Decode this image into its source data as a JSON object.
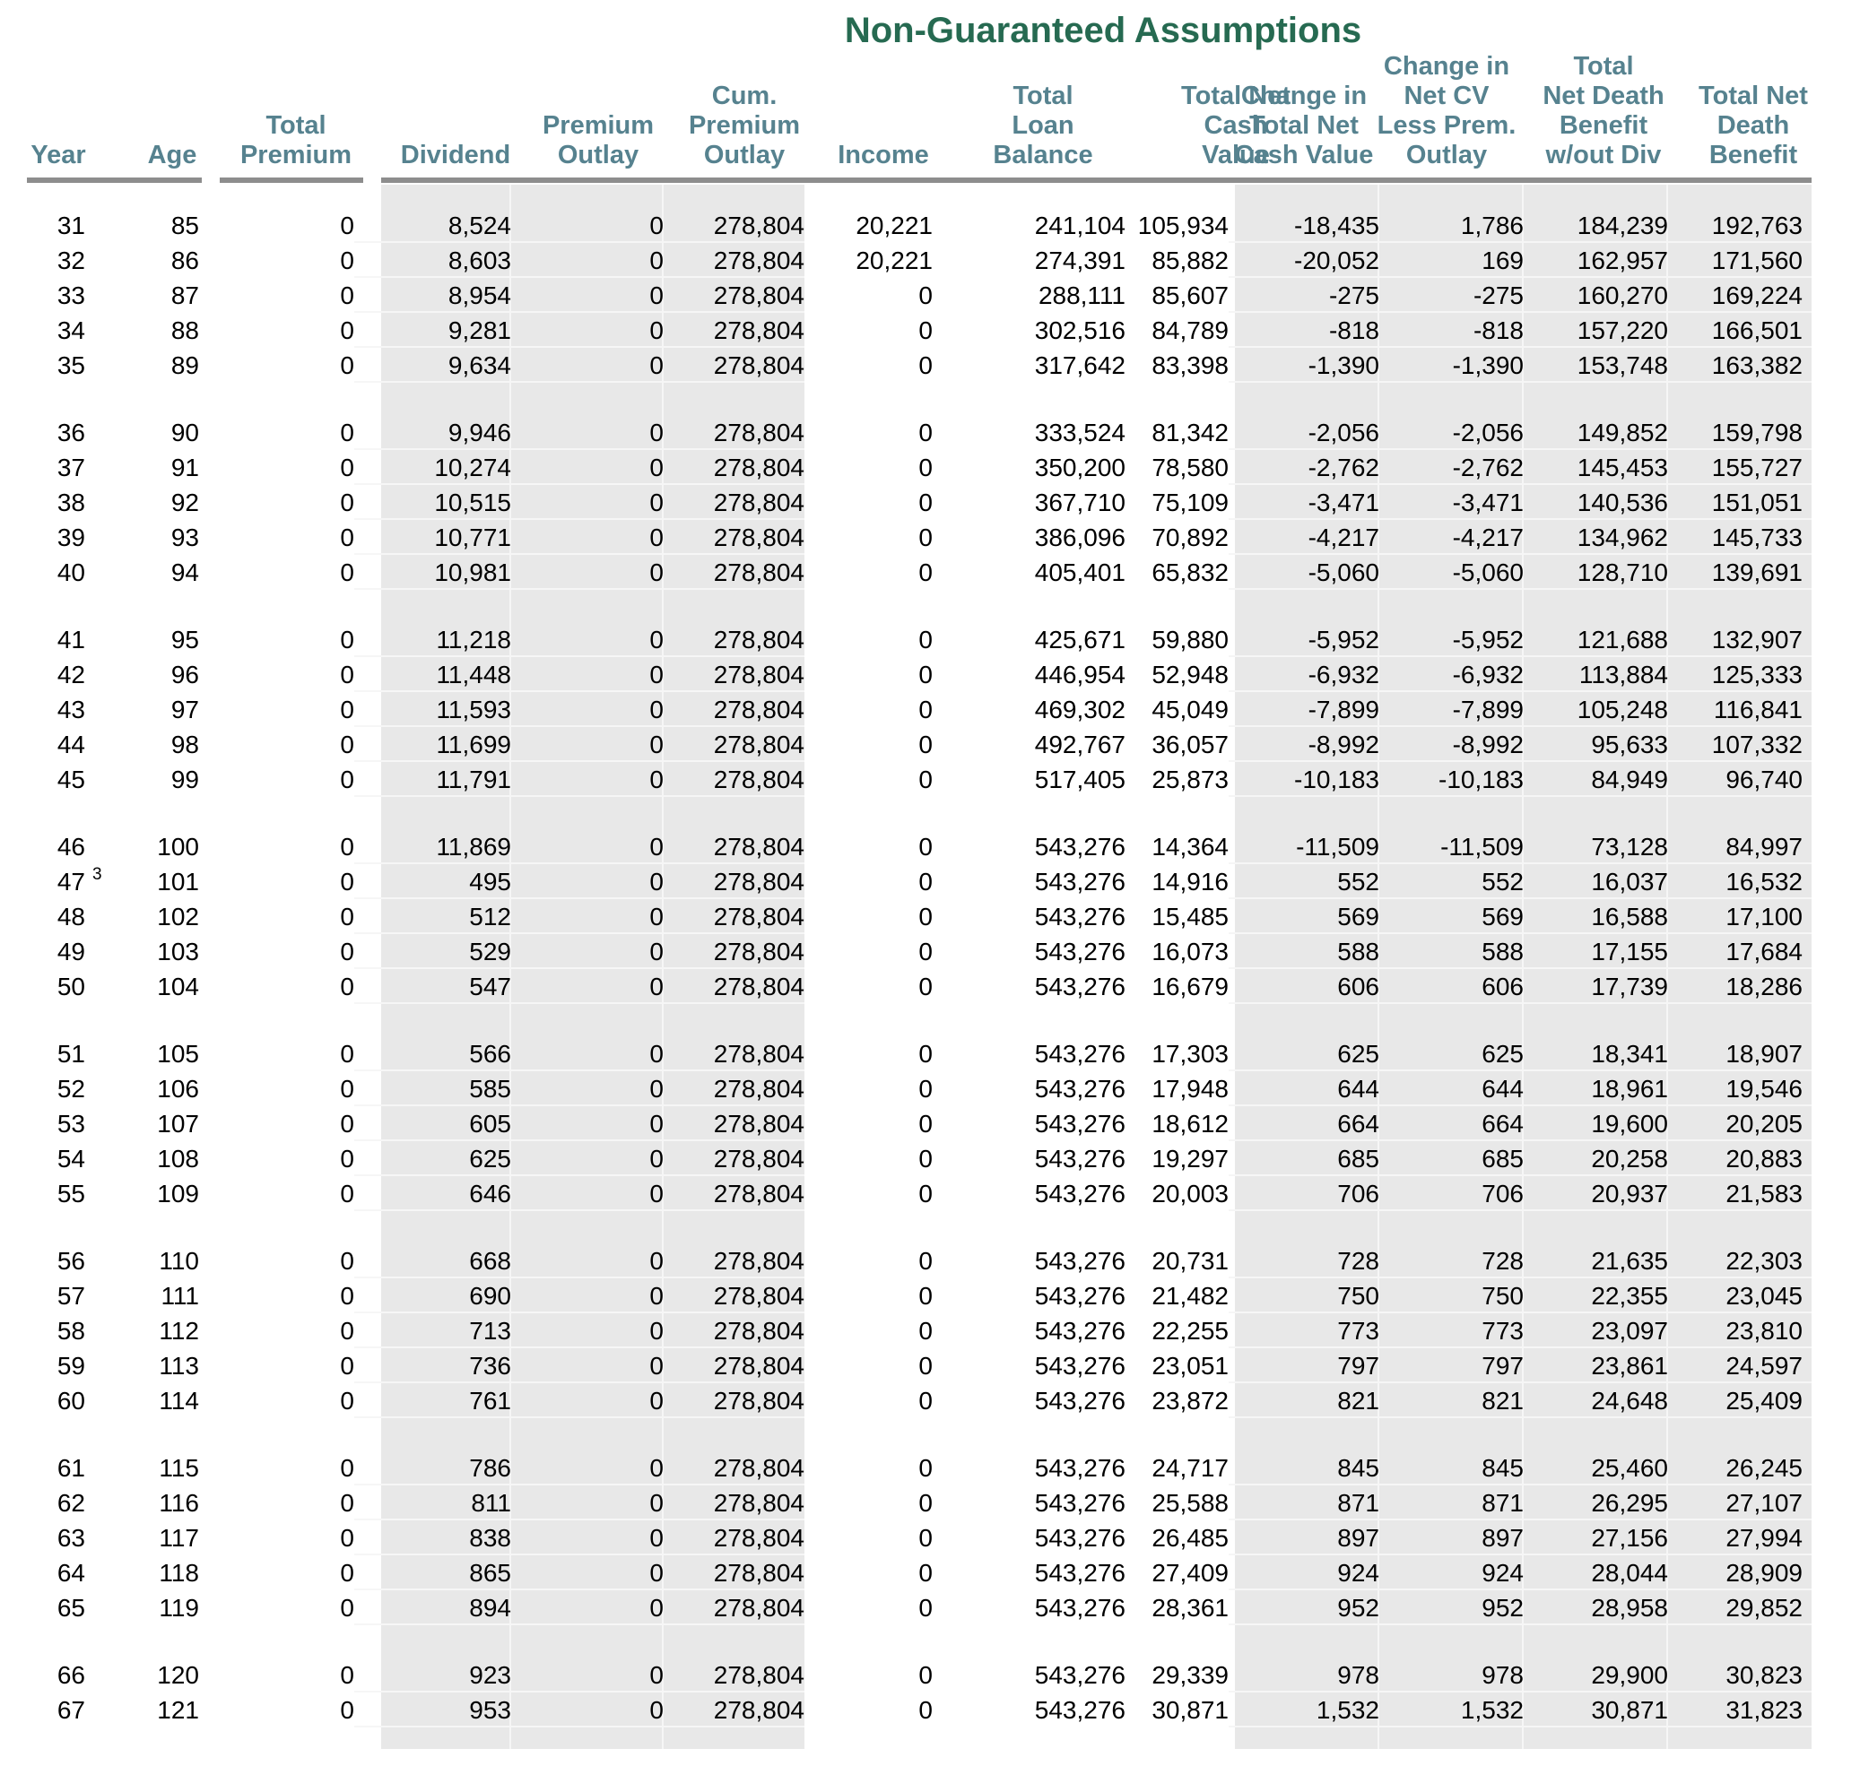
{
  "title": "Non-Guaranteed Assumptions",
  "colors": {
    "title_green": "#266a51",
    "header_teal": "#56828f",
    "band_gray": "#e8e8e8",
    "rule_gray": "#8d8d8d"
  },
  "table": {
    "columns": [
      {
        "id": "year",
        "lines": [
          "Year"
        ]
      },
      {
        "id": "age",
        "lines": [
          "Age"
        ]
      },
      {
        "id": "total-premium",
        "lines": [
          "Total",
          "Premium"
        ]
      },
      {
        "id": "dividend",
        "lines": [
          "Dividend"
        ]
      },
      {
        "id": "premium-outlay",
        "lines": [
          "Premium",
          "Outlay"
        ]
      },
      {
        "id": "cum-premium-outlay",
        "lines": [
          "Cum.",
          "Premium",
          "Outlay"
        ]
      },
      {
        "id": "income",
        "lines": [
          "Income"
        ]
      },
      {
        "id": "total-loan-balance",
        "lines": [
          "Total",
          "Loan",
          "Balance"
        ]
      },
      {
        "id": "total-net-cash-value",
        "lines": [
          "Total Net",
          "Cash",
          "Value"
        ]
      },
      {
        "id": "change-in-total-net-cash-value",
        "lines": [
          "Change in",
          "Total Net",
          "Cash Value"
        ]
      },
      {
        "id": "change-in-net-cv-less-prem-outlay",
        "lines": [
          "Change in",
          "Net CV",
          "Less Prem.",
          "Outlay"
        ]
      },
      {
        "id": "total-net-death-benefit-wout-div",
        "lines": [
          "Total",
          "Net Death",
          "Benefit",
          "w/out Div"
        ]
      },
      {
        "id": "total-net-death-benefit",
        "lines": [
          "Total Net",
          "Death",
          "Benefit"
        ]
      }
    ],
    "year_superscripts": {
      "47": "3"
    },
    "row_groups": [
      [
        [
          "31",
          "85",
          "0",
          "8,524",
          "0",
          "278,804",
          "20,221",
          "241,104",
          "105,934",
          "-18,435",
          "1,786",
          "184,239",
          "192,763"
        ],
        [
          "32",
          "86",
          "0",
          "8,603",
          "0",
          "278,804",
          "20,221",
          "274,391",
          "85,882",
          "-20,052",
          "169",
          "162,957",
          "171,560"
        ],
        [
          "33",
          "87",
          "0",
          "8,954",
          "0",
          "278,804",
          "0",
          "288,111",
          "85,607",
          "-275",
          "-275",
          "160,270",
          "169,224"
        ],
        [
          "34",
          "88",
          "0",
          "9,281",
          "0",
          "278,804",
          "0",
          "302,516",
          "84,789",
          "-818",
          "-818",
          "157,220",
          "166,501"
        ],
        [
          "35",
          "89",
          "0",
          "9,634",
          "0",
          "278,804",
          "0",
          "317,642",
          "83,398",
          "-1,390",
          "-1,390",
          "153,748",
          "163,382"
        ]
      ],
      [
        [
          "36",
          "90",
          "0",
          "9,946",
          "0",
          "278,804",
          "0",
          "333,524",
          "81,342",
          "-2,056",
          "-2,056",
          "149,852",
          "159,798"
        ],
        [
          "37",
          "91",
          "0",
          "10,274",
          "0",
          "278,804",
          "0",
          "350,200",
          "78,580",
          "-2,762",
          "-2,762",
          "145,453",
          "155,727"
        ],
        [
          "38",
          "92",
          "0",
          "10,515",
          "0",
          "278,804",
          "0",
          "367,710",
          "75,109",
          "-3,471",
          "-3,471",
          "140,536",
          "151,051"
        ],
        [
          "39",
          "93",
          "0",
          "10,771",
          "0",
          "278,804",
          "0",
          "386,096",
          "70,892",
          "-4,217",
          "-4,217",
          "134,962",
          "145,733"
        ],
        [
          "40",
          "94",
          "0",
          "10,981",
          "0",
          "278,804",
          "0",
          "405,401",
          "65,832",
          "-5,060",
          "-5,060",
          "128,710",
          "139,691"
        ]
      ],
      [
        [
          "41",
          "95",
          "0",
          "11,218",
          "0",
          "278,804",
          "0",
          "425,671",
          "59,880",
          "-5,952",
          "-5,952",
          "121,688",
          "132,907"
        ],
        [
          "42",
          "96",
          "0",
          "11,448",
          "0",
          "278,804",
          "0",
          "446,954",
          "52,948",
          "-6,932",
          "-6,932",
          "113,884",
          "125,333"
        ],
        [
          "43",
          "97",
          "0",
          "11,593",
          "0",
          "278,804",
          "0",
          "469,302",
          "45,049",
          "-7,899",
          "-7,899",
          "105,248",
          "116,841"
        ],
        [
          "44",
          "98",
          "0",
          "11,699",
          "0",
          "278,804",
          "0",
          "492,767",
          "36,057",
          "-8,992",
          "-8,992",
          "95,633",
          "107,332"
        ],
        [
          "45",
          "99",
          "0",
          "11,791",
          "0",
          "278,804",
          "0",
          "517,405",
          "25,873",
          "-10,183",
          "-10,183",
          "84,949",
          "96,740"
        ]
      ],
      [
        [
          "46",
          "100",
          "0",
          "11,869",
          "0",
          "278,804",
          "0",
          "543,276",
          "14,364",
          "-11,509",
          "-11,509",
          "73,128",
          "84,997"
        ],
        [
          "47",
          "101",
          "0",
          "495",
          "0",
          "278,804",
          "0",
          "543,276",
          "14,916",
          "552",
          "552",
          "16,037",
          "16,532"
        ],
        [
          "48",
          "102",
          "0",
          "512",
          "0",
          "278,804",
          "0",
          "543,276",
          "15,485",
          "569",
          "569",
          "16,588",
          "17,100"
        ],
        [
          "49",
          "103",
          "0",
          "529",
          "0",
          "278,804",
          "0",
          "543,276",
          "16,073",
          "588",
          "588",
          "17,155",
          "17,684"
        ],
        [
          "50",
          "104",
          "0",
          "547",
          "0",
          "278,804",
          "0",
          "543,276",
          "16,679",
          "606",
          "606",
          "17,739",
          "18,286"
        ]
      ],
      [
        [
          "51",
          "105",
          "0",
          "566",
          "0",
          "278,804",
          "0",
          "543,276",
          "17,303",
          "625",
          "625",
          "18,341",
          "18,907"
        ],
        [
          "52",
          "106",
          "0",
          "585",
          "0",
          "278,804",
          "0",
          "543,276",
          "17,948",
          "644",
          "644",
          "18,961",
          "19,546"
        ],
        [
          "53",
          "107",
          "0",
          "605",
          "0",
          "278,804",
          "0",
          "543,276",
          "18,612",
          "664",
          "664",
          "19,600",
          "20,205"
        ],
        [
          "54",
          "108",
          "0",
          "625",
          "0",
          "278,804",
          "0",
          "543,276",
          "19,297",
          "685",
          "685",
          "20,258",
          "20,883"
        ],
        [
          "55",
          "109",
          "0",
          "646",
          "0",
          "278,804",
          "0",
          "543,276",
          "20,003",
          "706",
          "706",
          "20,937",
          "21,583"
        ]
      ],
      [
        [
          "56",
          "110",
          "0",
          "668",
          "0",
          "278,804",
          "0",
          "543,276",
          "20,731",
          "728",
          "728",
          "21,635",
          "22,303"
        ],
        [
          "57",
          "111",
          "0",
          "690",
          "0",
          "278,804",
          "0",
          "543,276",
          "21,482",
          "750",
          "750",
          "22,355",
          "23,045"
        ],
        [
          "58",
          "112",
          "0",
          "713",
          "0",
          "278,804",
          "0",
          "543,276",
          "22,255",
          "773",
          "773",
          "23,097",
          "23,810"
        ],
        [
          "59",
          "113",
          "0",
          "736",
          "0",
          "278,804",
          "0",
          "543,276",
          "23,051",
          "797",
          "797",
          "23,861",
          "24,597"
        ],
        [
          "60",
          "114",
          "0",
          "761",
          "0",
          "278,804",
          "0",
          "543,276",
          "23,872",
          "821",
          "821",
          "24,648",
          "25,409"
        ]
      ],
      [
        [
          "61",
          "115",
          "0",
          "786",
          "0",
          "278,804",
          "0",
          "543,276",
          "24,717",
          "845",
          "845",
          "25,460",
          "26,245"
        ],
        [
          "62",
          "116",
          "0",
          "811",
          "0",
          "278,804",
          "0",
          "543,276",
          "25,588",
          "871",
          "871",
          "26,295",
          "27,107"
        ],
        [
          "63",
          "117",
          "0",
          "838",
          "0",
          "278,804",
          "0",
          "543,276",
          "26,485",
          "897",
          "897",
          "27,156",
          "27,994"
        ],
        [
          "64",
          "118",
          "0",
          "865",
          "0",
          "278,804",
          "0",
          "543,276",
          "27,409",
          "924",
          "924",
          "28,044",
          "28,909"
        ],
        [
          "65",
          "119",
          "0",
          "894",
          "0",
          "278,804",
          "0",
          "543,276",
          "28,361",
          "952",
          "952",
          "28,958",
          "29,852"
        ]
      ],
      [
        [
          "66",
          "120",
          "0",
          "923",
          "0",
          "278,804",
          "0",
          "543,276",
          "29,339",
          "978",
          "978",
          "29,900",
          "30,823"
        ],
        [
          "67",
          "121",
          "0",
          "953",
          "0",
          "278,804",
          "0",
          "543,276",
          "30,871",
          "1,532",
          "1,532",
          "30,871",
          "31,823"
        ]
      ]
    ]
  }
}
